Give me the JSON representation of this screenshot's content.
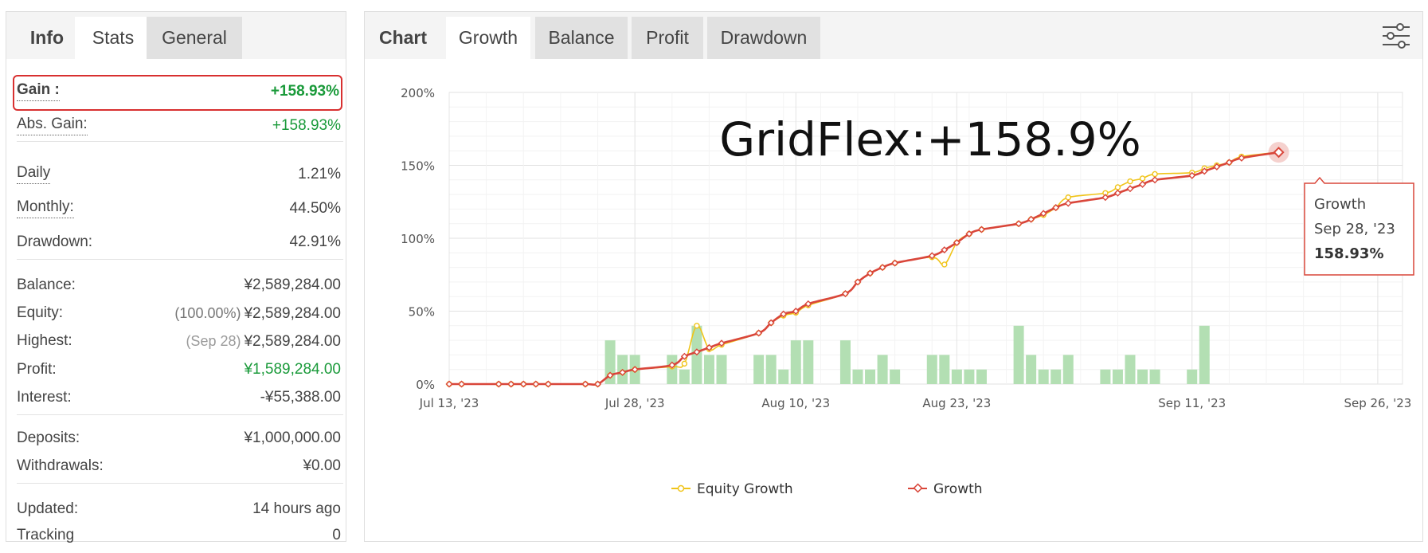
{
  "info_panel": {
    "tabs": [
      {
        "label": "Info"
      },
      {
        "label": "Stats"
      },
      {
        "label": "General"
      }
    ],
    "gain": {
      "label": "Gain :",
      "value": "+158.93%"
    },
    "abs_gain": {
      "label": "Abs. Gain:",
      "value": "+158.93%"
    },
    "daily": {
      "label": "Daily",
      "value": "1.21%"
    },
    "monthly": {
      "label": "Monthly:",
      "value": "44.50%"
    },
    "drawdown": {
      "label": "Drawdown:",
      "value": "42.91%"
    },
    "balance": {
      "label": "Balance:",
      "value": "¥2,589,284.00"
    },
    "equity": {
      "label": "Equity:",
      "prefix": "(100.00%)",
      "value": "¥2,589,284.00"
    },
    "highest": {
      "label": "Highest:",
      "prefix": "(Sep 28)",
      "value": "¥2,589,284.00"
    },
    "profit": {
      "label": "Profit:",
      "value": "¥1,589,284.00"
    },
    "interest": {
      "label": "Interest:",
      "value": "-¥55,388.00"
    },
    "deposits": {
      "label": "Deposits:",
      "value": "¥1,000,000.00"
    },
    "withdrawals": {
      "label": "Withdrawals:",
      "value": "¥0.00"
    },
    "updated": {
      "label": "Updated:",
      "value": "14 hours ago"
    },
    "tracking": {
      "label": "Tracking",
      "value": "0"
    },
    "colors": {
      "positive": "#1a9a3a",
      "highlight_border": "#d83030"
    }
  },
  "chart_panel": {
    "tabs": [
      {
        "label": "Chart"
      },
      {
        "label": "Growth"
      },
      {
        "label": "Balance"
      },
      {
        "label": "Profit"
      },
      {
        "label": "Drawdown"
      }
    ],
    "settings_icon": "sliders-icon",
    "overlay_title": "GridFlex:+158.9%",
    "tooltip": {
      "series": "Growth",
      "date": "Sep 28, '23",
      "value": "158.93%"
    },
    "legend": [
      {
        "name": "Equity Growth",
        "color": "#f0c419"
      },
      {
        "name": "Growth",
        "color": "#d9463a"
      }
    ]
  },
  "chart_data": {
    "type": "line",
    "title": "",
    "xlabel": "",
    "ylabel": "",
    "ylim": [
      0,
      200
    ],
    "yticks": [
      0,
      50,
      100,
      150,
      200
    ],
    "ytick_labels": [
      "0%",
      "50%",
      "100%",
      "150%",
      "200%"
    ],
    "xlim": [
      "2023-07-13",
      "2023-09-28"
    ],
    "xticks": [
      "2023-07-13",
      "2023-07-28",
      "2023-08-10",
      "2023-08-23",
      "2023-09-11",
      "2023-09-26"
    ],
    "xtick_labels": [
      "Jul 13, '23",
      "Jul 28, '23",
      "Aug 10, '23",
      "Aug 23, '23",
      "Sep 11, '23",
      "Sep 26, '23"
    ],
    "grid": true,
    "legend_position": "bottom",
    "series": [
      {
        "name": "Growth",
        "color": "#d9463a",
        "points": [
          [
            "2023-07-13",
            0
          ],
          [
            "2023-07-14",
            0
          ],
          [
            "2023-07-17",
            0
          ],
          [
            "2023-07-18",
            0
          ],
          [
            "2023-07-19",
            0
          ],
          [
            "2023-07-20",
            0
          ],
          [
            "2023-07-21",
            0
          ],
          [
            "2023-07-24",
            0
          ],
          [
            "2023-07-25",
            0
          ],
          [
            "2023-07-26",
            6
          ],
          [
            "2023-07-27",
            8
          ],
          [
            "2023-07-28",
            10
          ],
          [
            "2023-07-31",
            13
          ],
          [
            "2023-08-01",
            19
          ],
          [
            "2023-08-02",
            22
          ],
          [
            "2023-08-03",
            25
          ],
          [
            "2023-08-04",
            28
          ],
          [
            "2023-08-07",
            35
          ],
          [
            "2023-08-08",
            42
          ],
          [
            "2023-08-09",
            48
          ],
          [
            "2023-08-10",
            50
          ],
          [
            "2023-08-11",
            55
          ],
          [
            "2023-08-14",
            62
          ],
          [
            "2023-08-15",
            70
          ],
          [
            "2023-08-16",
            76
          ],
          [
            "2023-08-17",
            80
          ],
          [
            "2023-08-18",
            83
          ],
          [
            "2023-08-21",
            88
          ],
          [
            "2023-08-22",
            92
          ],
          [
            "2023-08-23",
            97
          ],
          [
            "2023-08-24",
            103
          ],
          [
            "2023-08-25",
            106
          ],
          [
            "2023-08-28",
            110
          ],
          [
            "2023-08-29",
            113
          ],
          [
            "2023-08-30",
            117
          ],
          [
            "2023-08-31",
            121
          ],
          [
            "2023-09-01",
            124
          ],
          [
            "2023-09-04",
            128
          ],
          [
            "2023-09-05",
            131
          ],
          [
            "2023-09-06",
            134
          ],
          [
            "2023-09-07",
            137
          ],
          [
            "2023-09-08",
            140
          ],
          [
            "2023-09-11",
            143
          ],
          [
            "2023-09-12",
            146
          ],
          [
            "2023-09-13",
            149
          ],
          [
            "2023-09-14",
            152
          ],
          [
            "2023-09-15",
            155
          ],
          [
            "2023-09-18",
            158.93
          ]
        ]
      },
      {
        "name": "Equity Growth",
        "color": "#f0c419",
        "points": [
          [
            "2023-07-13",
            0
          ],
          [
            "2023-07-14",
            0
          ],
          [
            "2023-07-17",
            0
          ],
          [
            "2023-07-18",
            0
          ],
          [
            "2023-07-19",
            0
          ],
          [
            "2023-07-20",
            0
          ],
          [
            "2023-07-21",
            0
          ],
          [
            "2023-07-24",
            0
          ],
          [
            "2023-07-25",
            0
          ],
          [
            "2023-07-26",
            6
          ],
          [
            "2023-07-27",
            8
          ],
          [
            "2023-07-28",
            10
          ],
          [
            "2023-07-31",
            12
          ],
          [
            "2023-08-01",
            14
          ],
          [
            "2023-08-02",
            40
          ],
          [
            "2023-08-03",
            24
          ],
          [
            "2023-08-04",
            27
          ],
          [
            "2023-08-07",
            35
          ],
          [
            "2023-08-08",
            42
          ],
          [
            "2023-08-09",
            47
          ],
          [
            "2023-08-10",
            49
          ],
          [
            "2023-08-11",
            54
          ],
          [
            "2023-08-14",
            62
          ],
          [
            "2023-08-15",
            70
          ],
          [
            "2023-08-16",
            76
          ],
          [
            "2023-08-17",
            80
          ],
          [
            "2023-08-18",
            83
          ],
          [
            "2023-08-21",
            87
          ],
          [
            "2023-08-22",
            82
          ],
          [
            "2023-08-23",
            97
          ],
          [
            "2023-08-24",
            103
          ],
          [
            "2023-08-25",
            106
          ],
          [
            "2023-08-28",
            110
          ],
          [
            "2023-08-29",
            113
          ],
          [
            "2023-08-30",
            116
          ],
          [
            "2023-08-31",
            121
          ],
          [
            "2023-09-01",
            128
          ],
          [
            "2023-09-04",
            131
          ],
          [
            "2023-09-05",
            135
          ],
          [
            "2023-09-06",
            139
          ],
          [
            "2023-09-07",
            141
          ],
          [
            "2023-09-08",
            144
          ],
          [
            "2023-09-11",
            145
          ],
          [
            "2023-09-12",
            148
          ],
          [
            "2023-09-13",
            150
          ],
          [
            "2023-09-14",
            152
          ],
          [
            "2023-09-15",
            156
          ],
          [
            "2023-09-18",
            158.93
          ]
        ]
      },
      {
        "name": "",
        "type": "bar",
        "color": "#b3dfb3",
        "points": [
          [
            "2023-07-26",
            30
          ],
          [
            "2023-07-27",
            20
          ],
          [
            "2023-07-28",
            20
          ],
          [
            "2023-07-31",
            20
          ],
          [
            "2023-08-01",
            10
          ],
          [
            "2023-08-02",
            40
          ],
          [
            "2023-08-03",
            20
          ],
          [
            "2023-08-04",
            20
          ],
          [
            "2023-08-07",
            20
          ],
          [
            "2023-08-08",
            20
          ],
          [
            "2023-08-09",
            10
          ],
          [
            "2023-08-10",
            30
          ],
          [
            "2023-08-11",
            30
          ],
          [
            "2023-08-14",
            30
          ],
          [
            "2023-08-15",
            10
          ],
          [
            "2023-08-16",
            10
          ],
          [
            "2023-08-17",
            20
          ],
          [
            "2023-08-18",
            10
          ],
          [
            "2023-08-21",
            20
          ],
          [
            "2023-08-22",
            20
          ],
          [
            "2023-08-23",
            10
          ],
          [
            "2023-08-24",
            10
          ],
          [
            "2023-08-25",
            10
          ],
          [
            "2023-08-28",
            40
          ],
          [
            "2023-08-29",
            20
          ],
          [
            "2023-08-30",
            10
          ],
          [
            "2023-08-31",
            10
          ],
          [
            "2023-09-01",
            20
          ],
          [
            "2023-09-04",
            10
          ],
          [
            "2023-09-05",
            10
          ],
          [
            "2023-09-06",
            20
          ],
          [
            "2023-09-07",
            10
          ],
          [
            "2023-09-08",
            10
          ],
          [
            "2023-09-11",
            10
          ],
          [
            "2023-09-12",
            40
          ]
        ]
      }
    ]
  }
}
